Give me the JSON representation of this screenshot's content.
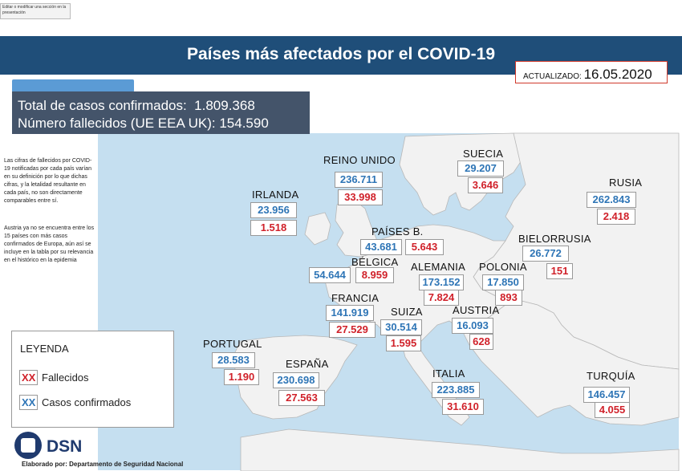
{
  "tooltip": "Editar o modificar una sección en la presentación",
  "title": "Países más afectados por el COVID-19",
  "updated": {
    "label": "ACTUALIZADO:",
    "date": "16.05.2020"
  },
  "totals": {
    "confirmed_label": "Total de casos confirmados:",
    "confirmed_value": "1.809.368",
    "deaths_label": "Número fallecidos (UE EEA UK):",
    "deaths_value": "154.590"
  },
  "notes": [
    "Las cifras de fallecidos por COVID-19 notificadas por cada país varían en su definición por lo que dichas cifras, y la letalidad resultante en cada país, no son directamente comparables entre sí.",
    "Austria ya no se encuentra entre los 15 países con más casos confirmados de Europa, aún así se incluye en la tabla por su relevancia en el histórico en la epidemia"
  ],
  "legend": {
    "title": "LEYENDA",
    "deaths_marker": "XX",
    "deaths_label": "Fallecidos",
    "cases_marker": "XX",
    "cases_label": "Casos confirmados"
  },
  "branding": {
    "logo_text": "DSN",
    "credit": "Elaborado por: Departamento de Seguridad Nacional"
  },
  "colors": {
    "title_bar": "#1f4e79",
    "sea": "#c5dff0",
    "land": "#f2f2f2",
    "cases": "#2e75b6",
    "deaths": "#d0212a"
  },
  "countries": [
    {
      "name": "REINO UNIDO",
      "cases": "236.711",
      "deaths": "33.998"
    },
    {
      "name": "SUECIA",
      "cases": "29.207",
      "deaths": "3.646"
    },
    {
      "name": "RUSIA",
      "cases": "262.843",
      "deaths": "2.418"
    },
    {
      "name": "IRLANDA",
      "cases": "23.956",
      "deaths": "1.518"
    },
    {
      "name": "PAÍSES B.",
      "cases": "43.681",
      "deaths": "5.643"
    },
    {
      "name": "BIELORRUSIA",
      "cases": "26.772",
      "deaths": "151"
    },
    {
      "name": "BÉLGICA",
      "cases": "54.644",
      "deaths": "8.959"
    },
    {
      "name": "ALEMANIA",
      "cases": "173.152",
      "deaths": "7.824"
    },
    {
      "name": "POLONIA",
      "cases": "17.850",
      "deaths": "893"
    },
    {
      "name": "FRANCIA",
      "cases": "141.919",
      "deaths": "27.529"
    },
    {
      "name": "SUIZA",
      "cases": "30.514",
      "deaths": "1.595"
    },
    {
      "name": "AUSTRIA",
      "cases": "16.093",
      "deaths": "628"
    },
    {
      "name": "PORTUGAL",
      "cases": "28.583",
      "deaths": "1.190"
    },
    {
      "name": "ESPAÑA",
      "cases": "230.698",
      "deaths": "27.563"
    },
    {
      "name": "ITALIA",
      "cases": "223.885",
      "deaths": "31.610"
    },
    {
      "name": "TURQUÍA",
      "cases": "146.457",
      "deaths": "4.055"
    }
  ]
}
